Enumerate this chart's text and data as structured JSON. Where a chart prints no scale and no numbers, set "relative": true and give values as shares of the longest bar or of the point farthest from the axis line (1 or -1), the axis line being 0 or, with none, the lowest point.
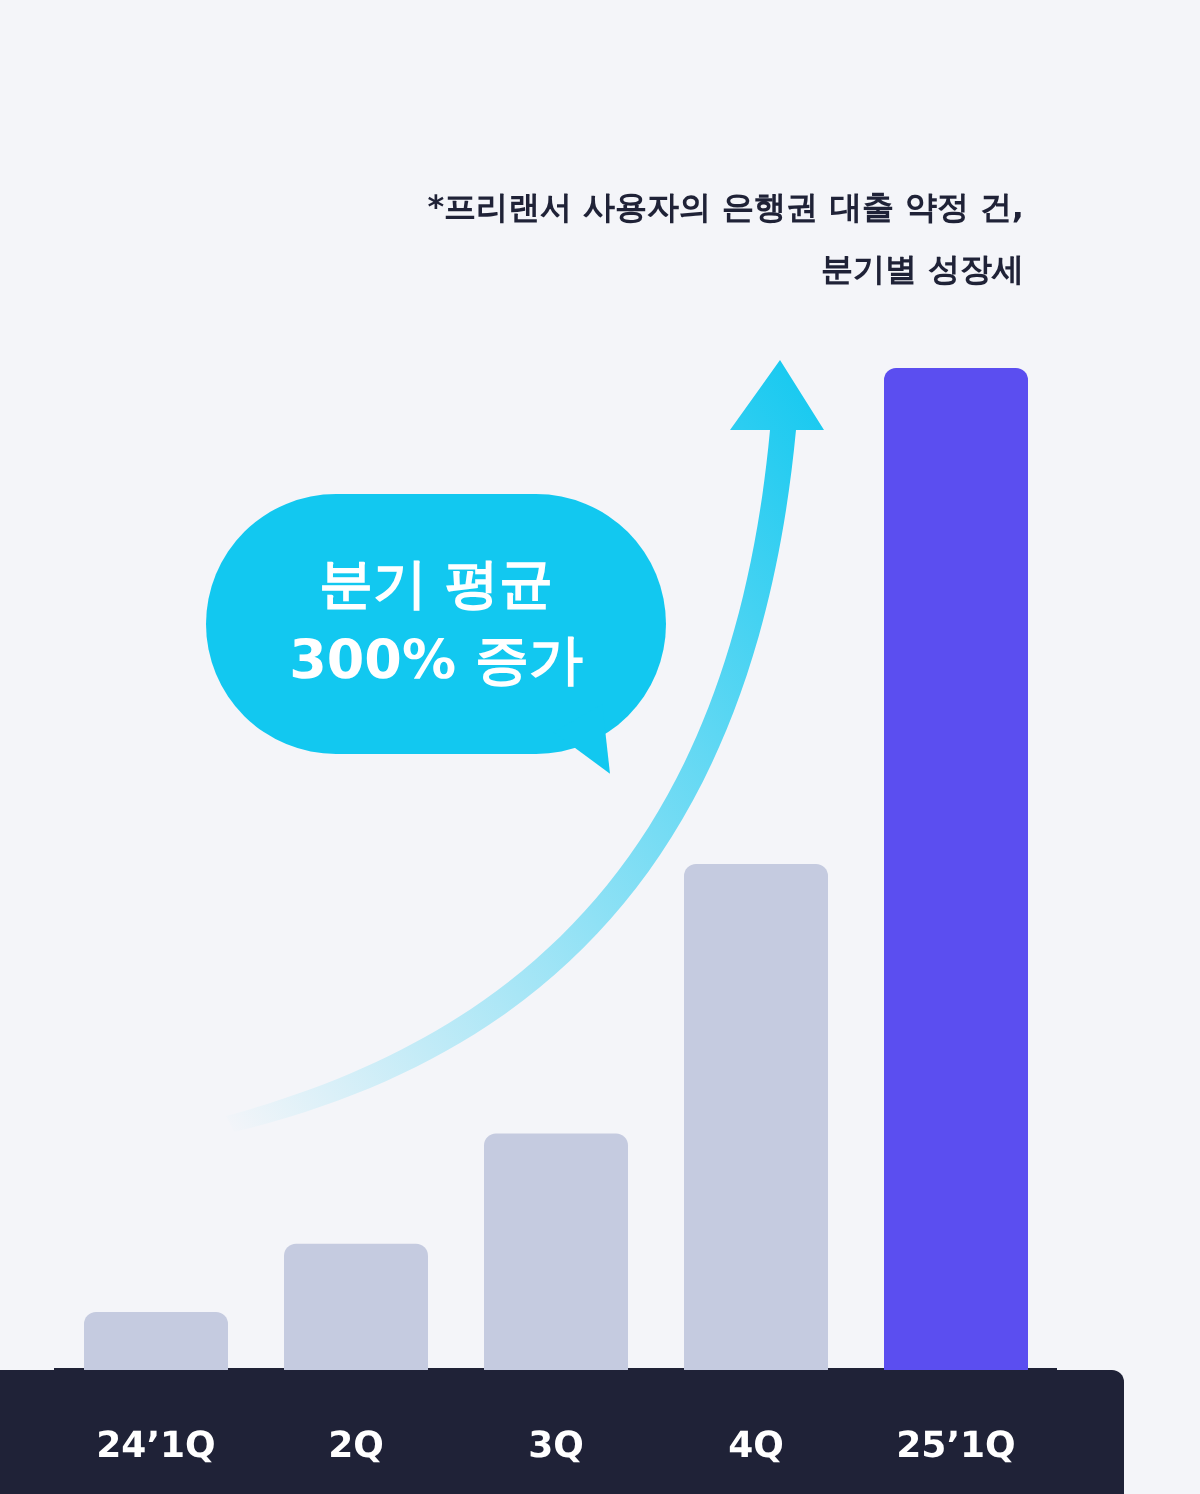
{
  "chart_data": {
    "type": "bar",
    "relative": true,
    "categories": [
      "24’1Q",
      "2Q",
      "3Q",
      "4Q",
      "25’1Q"
    ],
    "values": [
      0.058,
      0.126,
      0.236,
      0.505,
      1
    ],
    "colors": [
      "#c5cbe0",
      "#c5cbe0",
      "#c5cbe0",
      "#c5cbe0",
      "#5b4ef0"
    ],
    "annotations": [
      "*프리랜서 사용자의 은행권 대출 약정 건,\n분기별 성장세",
      "분기 평균\n300% 증가"
    ]
  }
}
